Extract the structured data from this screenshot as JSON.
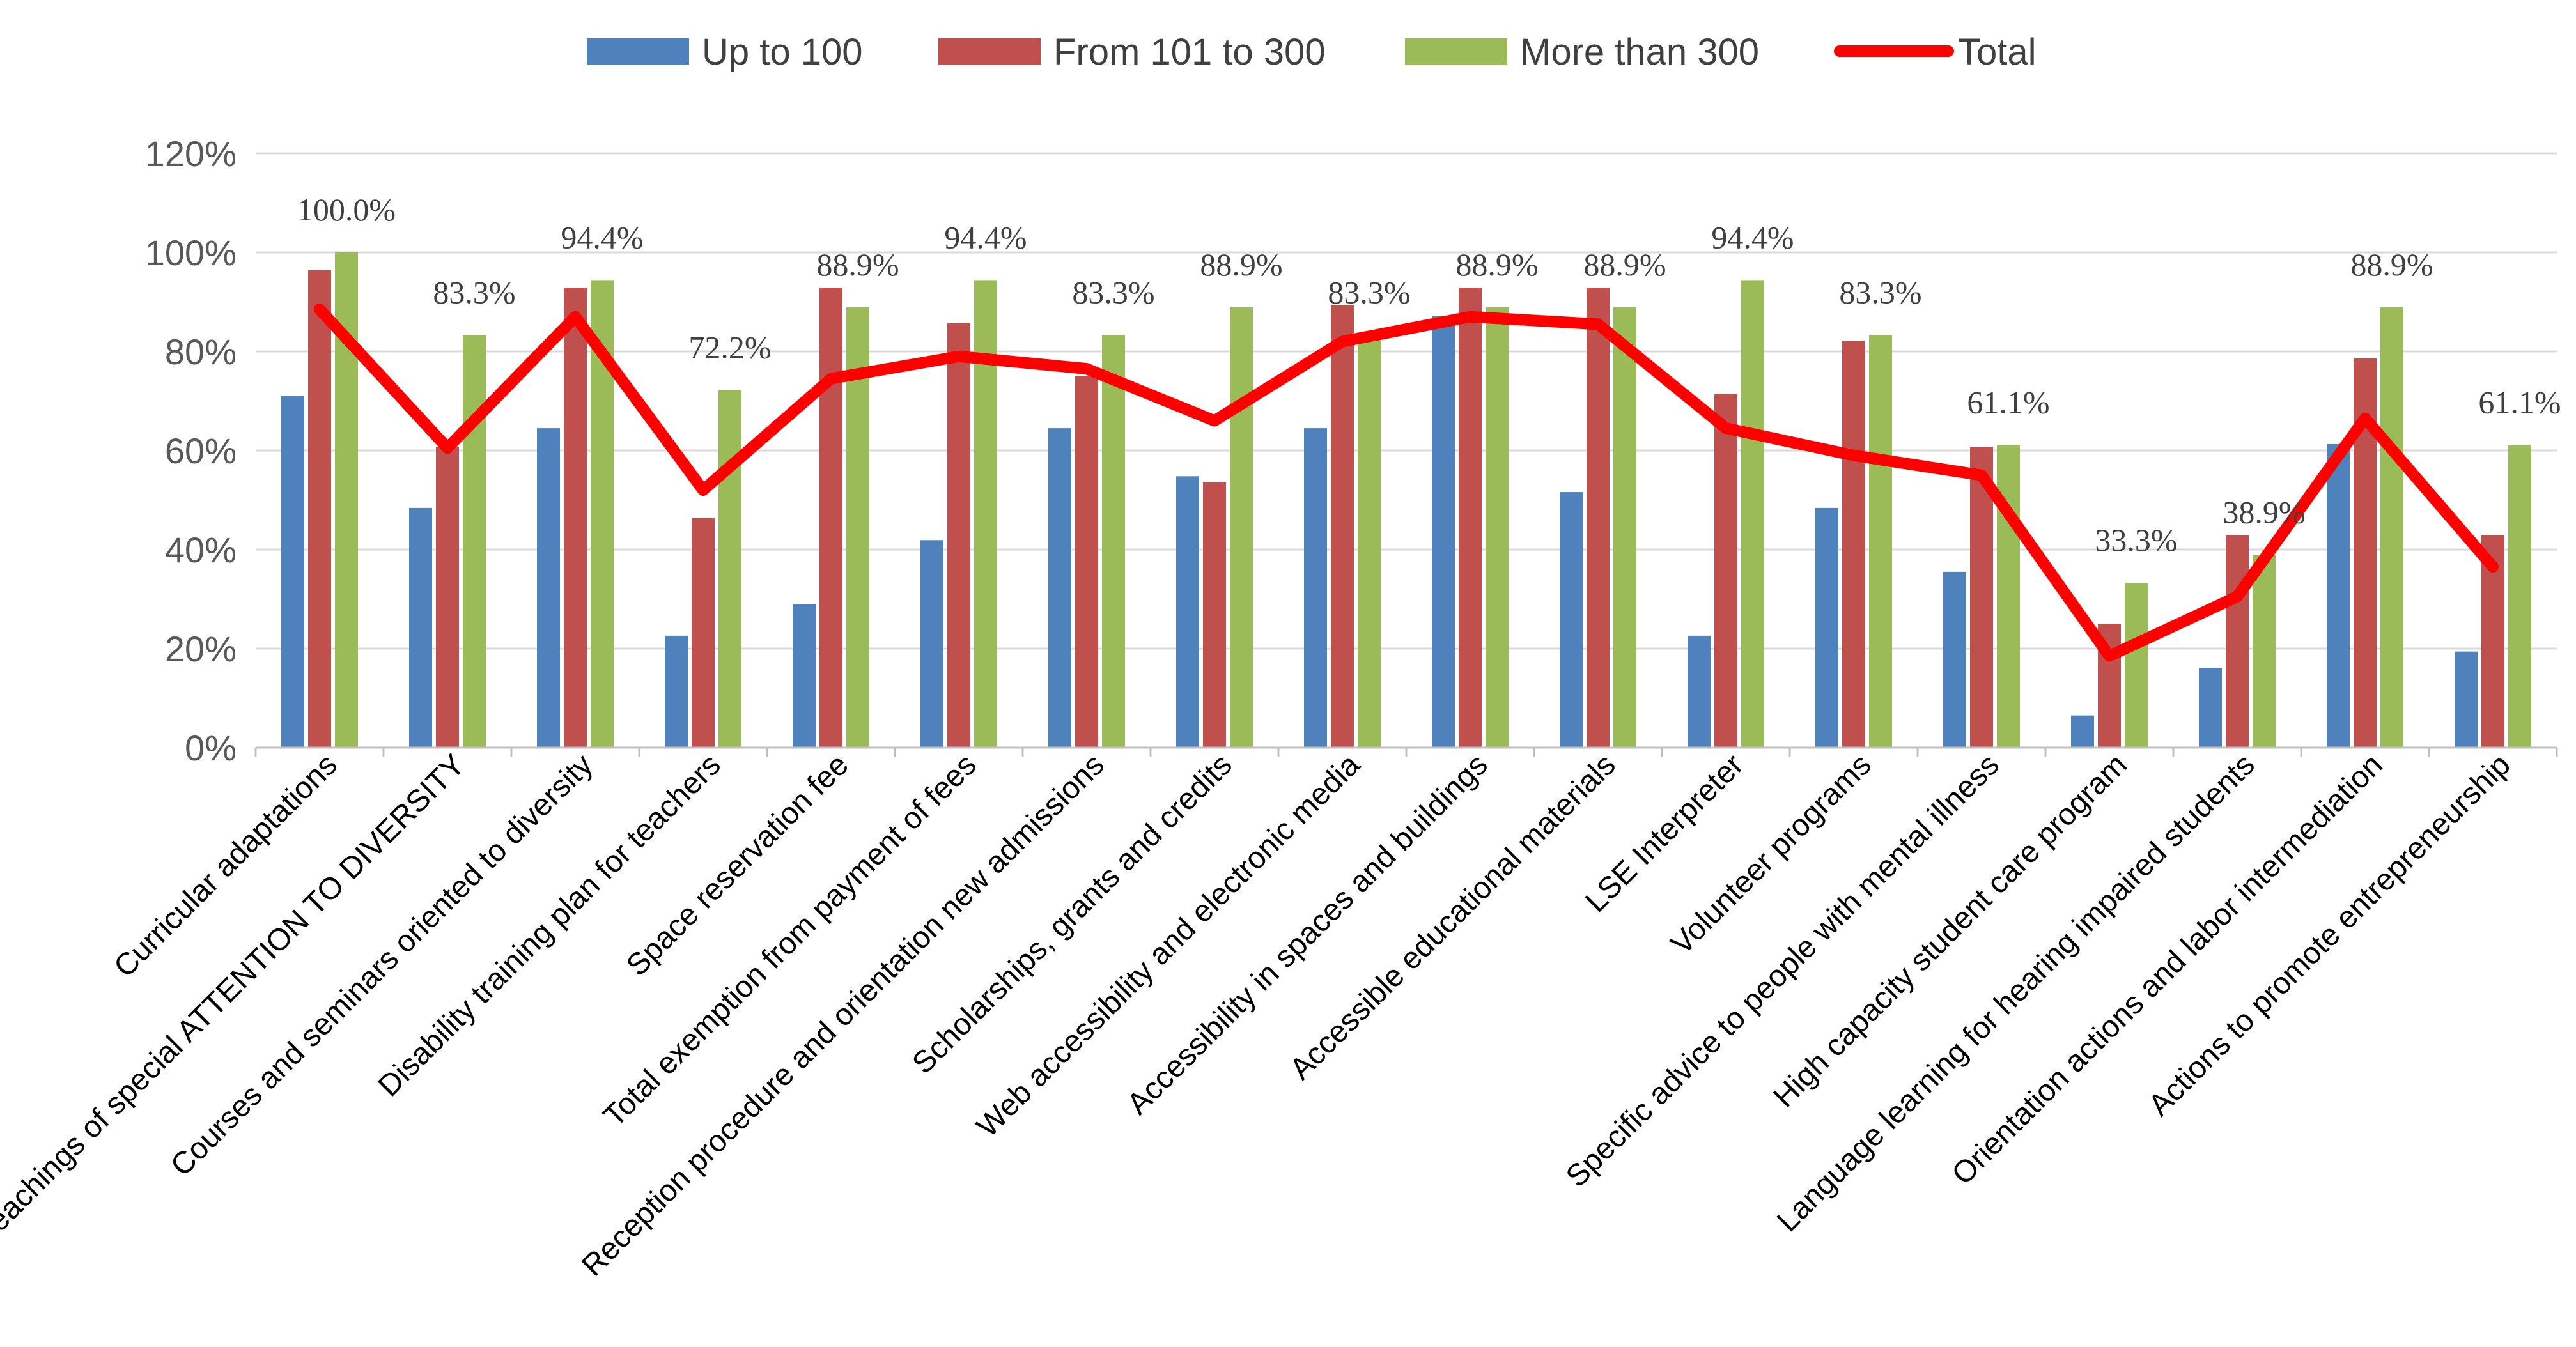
{
  "chart_data": {
    "type": "bar",
    "title": "",
    "xlabel": "",
    "ylabel": "",
    "ylim": [
      0,
      120
    ],
    "yticks": [
      0,
      20,
      40,
      60,
      80,
      100,
      120
    ],
    "ytick_labels": [
      "0%",
      "20%",
      "40%",
      "60%",
      "80%",
      "100%",
      "120%"
    ],
    "grid": true,
    "legend_position": "top",
    "categories": [
      "Curricular adaptations",
      "Teachings of special ATTENTION TO DIVERSITY",
      "Courses and seminars oriented to diversity",
      "Disability training plan for teachers",
      "Space reservation fee",
      "Total exemption from payment of fees",
      "Reception procedure and orientation new admissions",
      "Scholarships, grants and credits",
      "Web accessibility and electronic media",
      "Accessibility in spaces and buildings",
      "Accessible educational materials",
      "LSE Interpreter",
      "Volunteer programs",
      "Specific advice to people with mental illness",
      "High capacity student care program",
      "Language learning for hearing impaired students",
      "Orientation actions and labor intermediation",
      "Actions to promote entrepreneurship"
    ],
    "series": [
      {
        "name": "Up to 100",
        "kind": "bar",
        "color": "#4F81BD",
        "values": [
          71,
          48.4,
          64.5,
          22.6,
          29,
          41.9,
          64.5,
          54.8,
          64.5,
          87.1,
          51.6,
          22.6,
          48.4,
          35.5,
          6.5,
          16.1,
          61.3,
          19.4
        ]
      },
      {
        "name": "From 101 to 300",
        "kind": "bar",
        "color": "#C0504D",
        "values": [
          96.4,
          60.7,
          92.9,
          46.4,
          92.9,
          85.7,
          75,
          53.6,
          89.3,
          92.9,
          92.9,
          71.4,
          82.1,
          60.7,
          25,
          42.9,
          78.6,
          42.9
        ]
      },
      {
        "name": "More than 300",
        "kind": "bar",
        "color": "#9BBB59",
        "values": [
          100,
          83.3,
          94.4,
          72.2,
          88.9,
          94.4,
          83.3,
          88.9,
          83.3,
          88.9,
          88.9,
          94.4,
          83.3,
          61.1,
          33.3,
          38.9,
          88.9,
          61.1
        ],
        "data_labels": [
          "100.0%",
          "83.3%",
          "94.4%",
          "72.2%",
          "88.9%",
          "94.4%",
          "83.3%",
          "88.9%",
          "83.3%",
          "88.9%",
          "88.9%",
          "94.4%",
          "83.3%",
          "61.1%",
          "33.3%",
          "38.9%",
          "88.9%",
          "61.1%"
        ]
      },
      {
        "name": "Total",
        "kind": "line",
        "color": "#FF0000",
        "values": [
          88.5,
          60.5,
          87,
          52,
          74.5,
          79,
          76.5,
          66,
          82,
          87,
          85.5,
          64.5,
          59,
          55,
          18.5,
          30.5,
          66.5,
          36.5
        ]
      }
    ]
  }
}
